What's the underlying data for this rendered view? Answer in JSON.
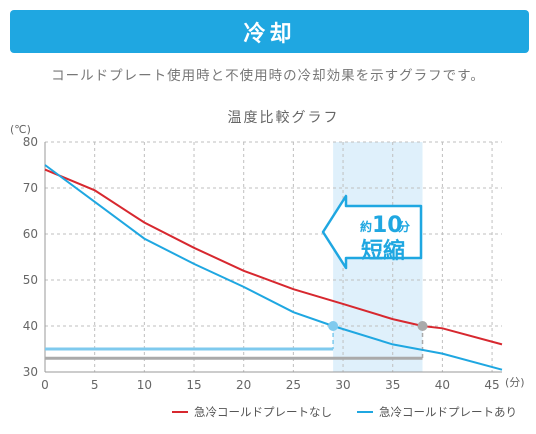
{
  "header": {
    "title": "冷却"
  },
  "subtitle": "コールドプレート使用時と不使用時の冷却効果を示すグラフです。",
  "chart_data": {
    "type": "line",
    "title": "温度比較グラフ",
    "y_unit": "(℃)",
    "x_unit": "(分)",
    "xlim": [
      0,
      46
    ],
    "ylim": [
      30,
      80
    ],
    "x_ticks": [
      0,
      5,
      10,
      15,
      20,
      25,
      30,
      35,
      40,
      45
    ],
    "y_ticks": [
      30,
      40,
      50,
      60,
      70,
      80
    ],
    "grid": true,
    "legend_position": "bottom-right",
    "series": [
      {
        "name": "急冷コールドプレートなし",
        "color": "#d7282f",
        "x": [
          0,
          5,
          10,
          15,
          20,
          25,
          30,
          35,
          38,
          40,
          46
        ],
        "y": [
          74,
          69.5,
          62.5,
          57,
          52,
          48,
          44.8,
          41.5,
          40,
          39.5,
          36
        ]
      },
      {
        "name": "急冷コールドプレートあり",
        "color": "#1fa7e1",
        "x": [
          0,
          5,
          10,
          15,
          20,
          25,
          29,
          35,
          40,
          46
        ],
        "y": [
          75,
          67,
          59,
          53.5,
          48.5,
          43,
          40,
          36,
          34,
          30.5
        ]
      }
    ],
    "threshold_lines": [
      {
        "y": 35,
        "x_end": 29,
        "color": "#7fcaee"
      },
      {
        "y": 33,
        "x_end": 38,
        "color": "#aaaaaa"
      }
    ],
    "highlight_band": {
      "x_start": 29,
      "x_end": 38,
      "color": "#dff0fb"
    },
    "markers": [
      {
        "x": 29,
        "y": 40,
        "color": "#7fcaee"
      },
      {
        "x": 38,
        "y": 40,
        "color": "#aaaaaa"
      }
    ],
    "annotation": {
      "prefix": "約",
      "number": "10",
      "unit": "分",
      "label": "短縮",
      "color": "#1fa7e1"
    }
  }
}
